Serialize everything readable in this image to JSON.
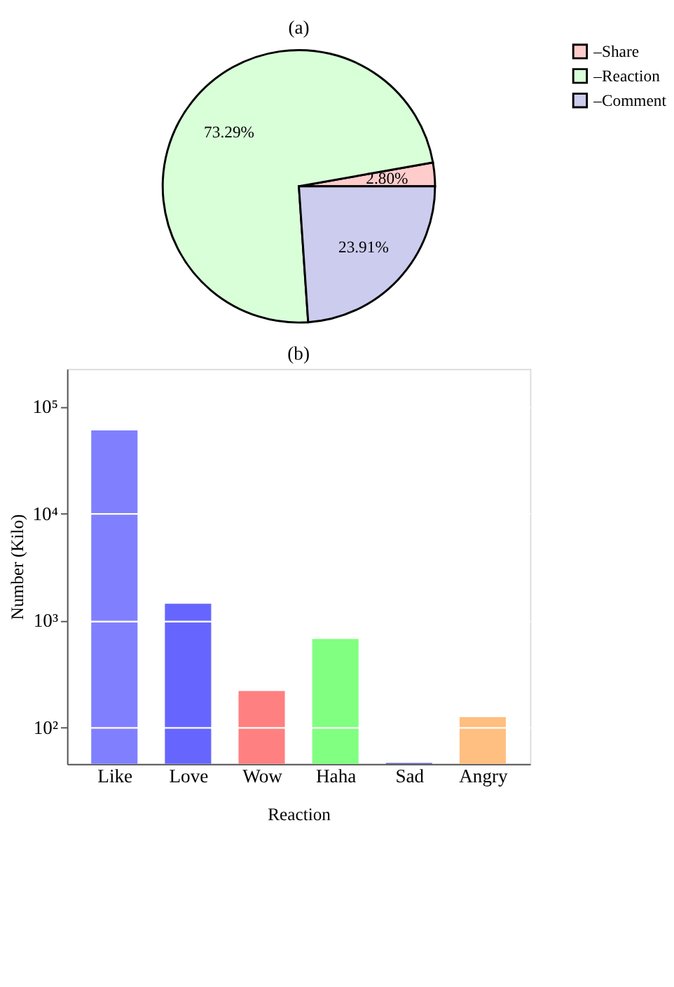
{
  "chart_data": [
    {
      "type": "pie",
      "title": "(a)",
      "categories": [
        "–Share",
        "–Reaction",
        "–Comment"
      ],
      "values": [
        2.8,
        73.29,
        23.91
      ],
      "colors": [
        "#ffcccc",
        "#d9ffd9",
        "#ccccee"
      ],
      "value_labels": [
        "2.80%",
        "73.29%",
        "23.91%"
      ],
      "legend": "right"
    },
    {
      "type": "bar",
      "title": "(b)",
      "xlabel": "Reaction",
      "ylabel": "Number (Kilo)",
      "categories": [
        "Like",
        "Love",
        "Wow",
        "Haha",
        "Sad",
        "Angry"
      ],
      "values": [
        60000,
        1440,
        221,
        676,
        47,
        126
      ],
      "colors": [
        "#8080ff",
        "#6666ff",
        "#ff8080",
        "#80ff80",
        "#3333aa",
        "#ffbf80"
      ],
      "log": true,
      "ylim": [
        46,
        225000
      ],
      "yticks": [
        {
          "value": 100,
          "label": "10²"
        },
        {
          "value": 1000,
          "label": "10³"
        },
        {
          "value": 10000,
          "label": "10⁴"
        },
        {
          "value": 100000,
          "label": "10⁵"
        }
      ],
      "grid": "y"
    }
  ]
}
